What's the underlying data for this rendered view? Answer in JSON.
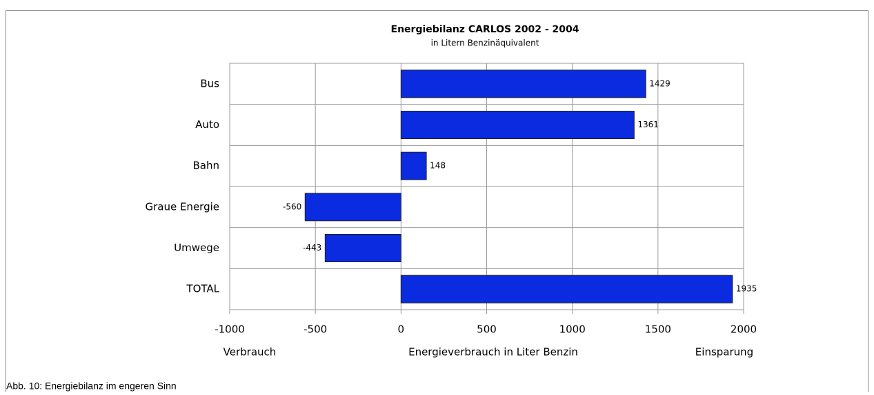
{
  "chart_data": {
    "type": "hbar",
    "title": "Energiebilanz CARLOS 2002 - 2004",
    "subtitle": "in Litern Benzinäquivalent",
    "categories": [
      "Bus",
      "Auto",
      "Bahn",
      "Graue Energie",
      "Umwege",
      "TOTAL"
    ],
    "values": [
      1429,
      1361,
      148,
      -560,
      -443,
      1935
    ],
    "color": "#0a2be0",
    "xlim": [
      -1000,
      2000
    ],
    "xticks": [
      -1000,
      -500,
      0,
      500,
      1000,
      1500,
      2000
    ],
    "grid": true,
    "x_label": "Energieverbrauch in Liter Benzin",
    "x_label_left": "Verbrauch",
    "x_label_right": "Einsparung"
  },
  "caption": "Abb. 10: Energiebilanz im engeren Sinn"
}
